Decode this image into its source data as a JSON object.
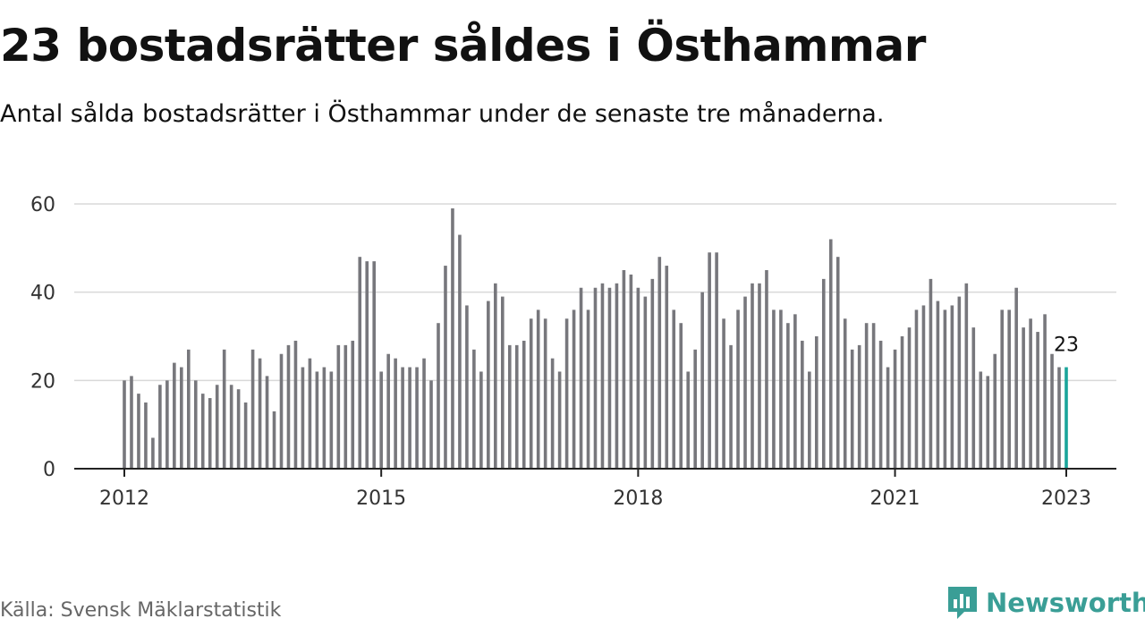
{
  "title": "23 bostadsrätter såldes i Östhammar",
  "subtitle": "Antal sålda bostadsrätter i Östhammar under de senaste tre månaderna.",
  "source": "Källa: Svensk Mäklarstatistik",
  "brand": {
    "name": "Newsworthy",
    "icon": "bar-chart-speech-bubble-icon",
    "color": "#3a9e96"
  },
  "colors": {
    "bar": "#77777c",
    "highlight": "#1aa59b",
    "grid": "#d9d9d9",
    "axis": "#222222"
  },
  "chart_data": {
    "type": "bar",
    "x_start": "2012-01",
    "x_end": "2023-01",
    "x_step": "month",
    "xticks": [
      "2012",
      "2015",
      "2018",
      "2021",
      "2023"
    ],
    "yticks": [
      "0",
      "20",
      "40",
      "60"
    ],
    "ylim": [
      0,
      60
    ],
    "grid": true,
    "highlight_last": true,
    "last_label": "23",
    "values": [
      20,
      21,
      17,
      15,
      7,
      19,
      20,
      24,
      23,
      27,
      20,
      17,
      16,
      19,
      27,
      19,
      18,
      15,
      27,
      25,
      21,
      13,
      26,
      28,
      29,
      23,
      25,
      22,
      23,
      22,
      28,
      28,
      29,
      48,
      47,
      47,
      22,
      26,
      25,
      23,
      23,
      23,
      25,
      20,
      33,
      46,
      59,
      53,
      37,
      27,
      22,
      38,
      42,
      39,
      28,
      28,
      29,
      34,
      36,
      34,
      25,
      22,
      34,
      36,
      41,
      36,
      41,
      42,
      41,
      42,
      45,
      44,
      41,
      39,
      43,
      48,
      46,
      36,
      33,
      22,
      27,
      40,
      49,
      49,
      34,
      28,
      36,
      39,
      42,
      42,
      45,
      36,
      36,
      33,
      35,
      29,
      22,
      30,
      43,
      52,
      48,
      34,
      27,
      28,
      33,
      33,
      29,
      23,
      27,
      30,
      32,
      36,
      37,
      43,
      38,
      36,
      37,
      39,
      42,
      32,
      22,
      21,
      26,
      36,
      36,
      41,
      32,
      34,
      31,
      35,
      26,
      23,
      23
    ]
  }
}
